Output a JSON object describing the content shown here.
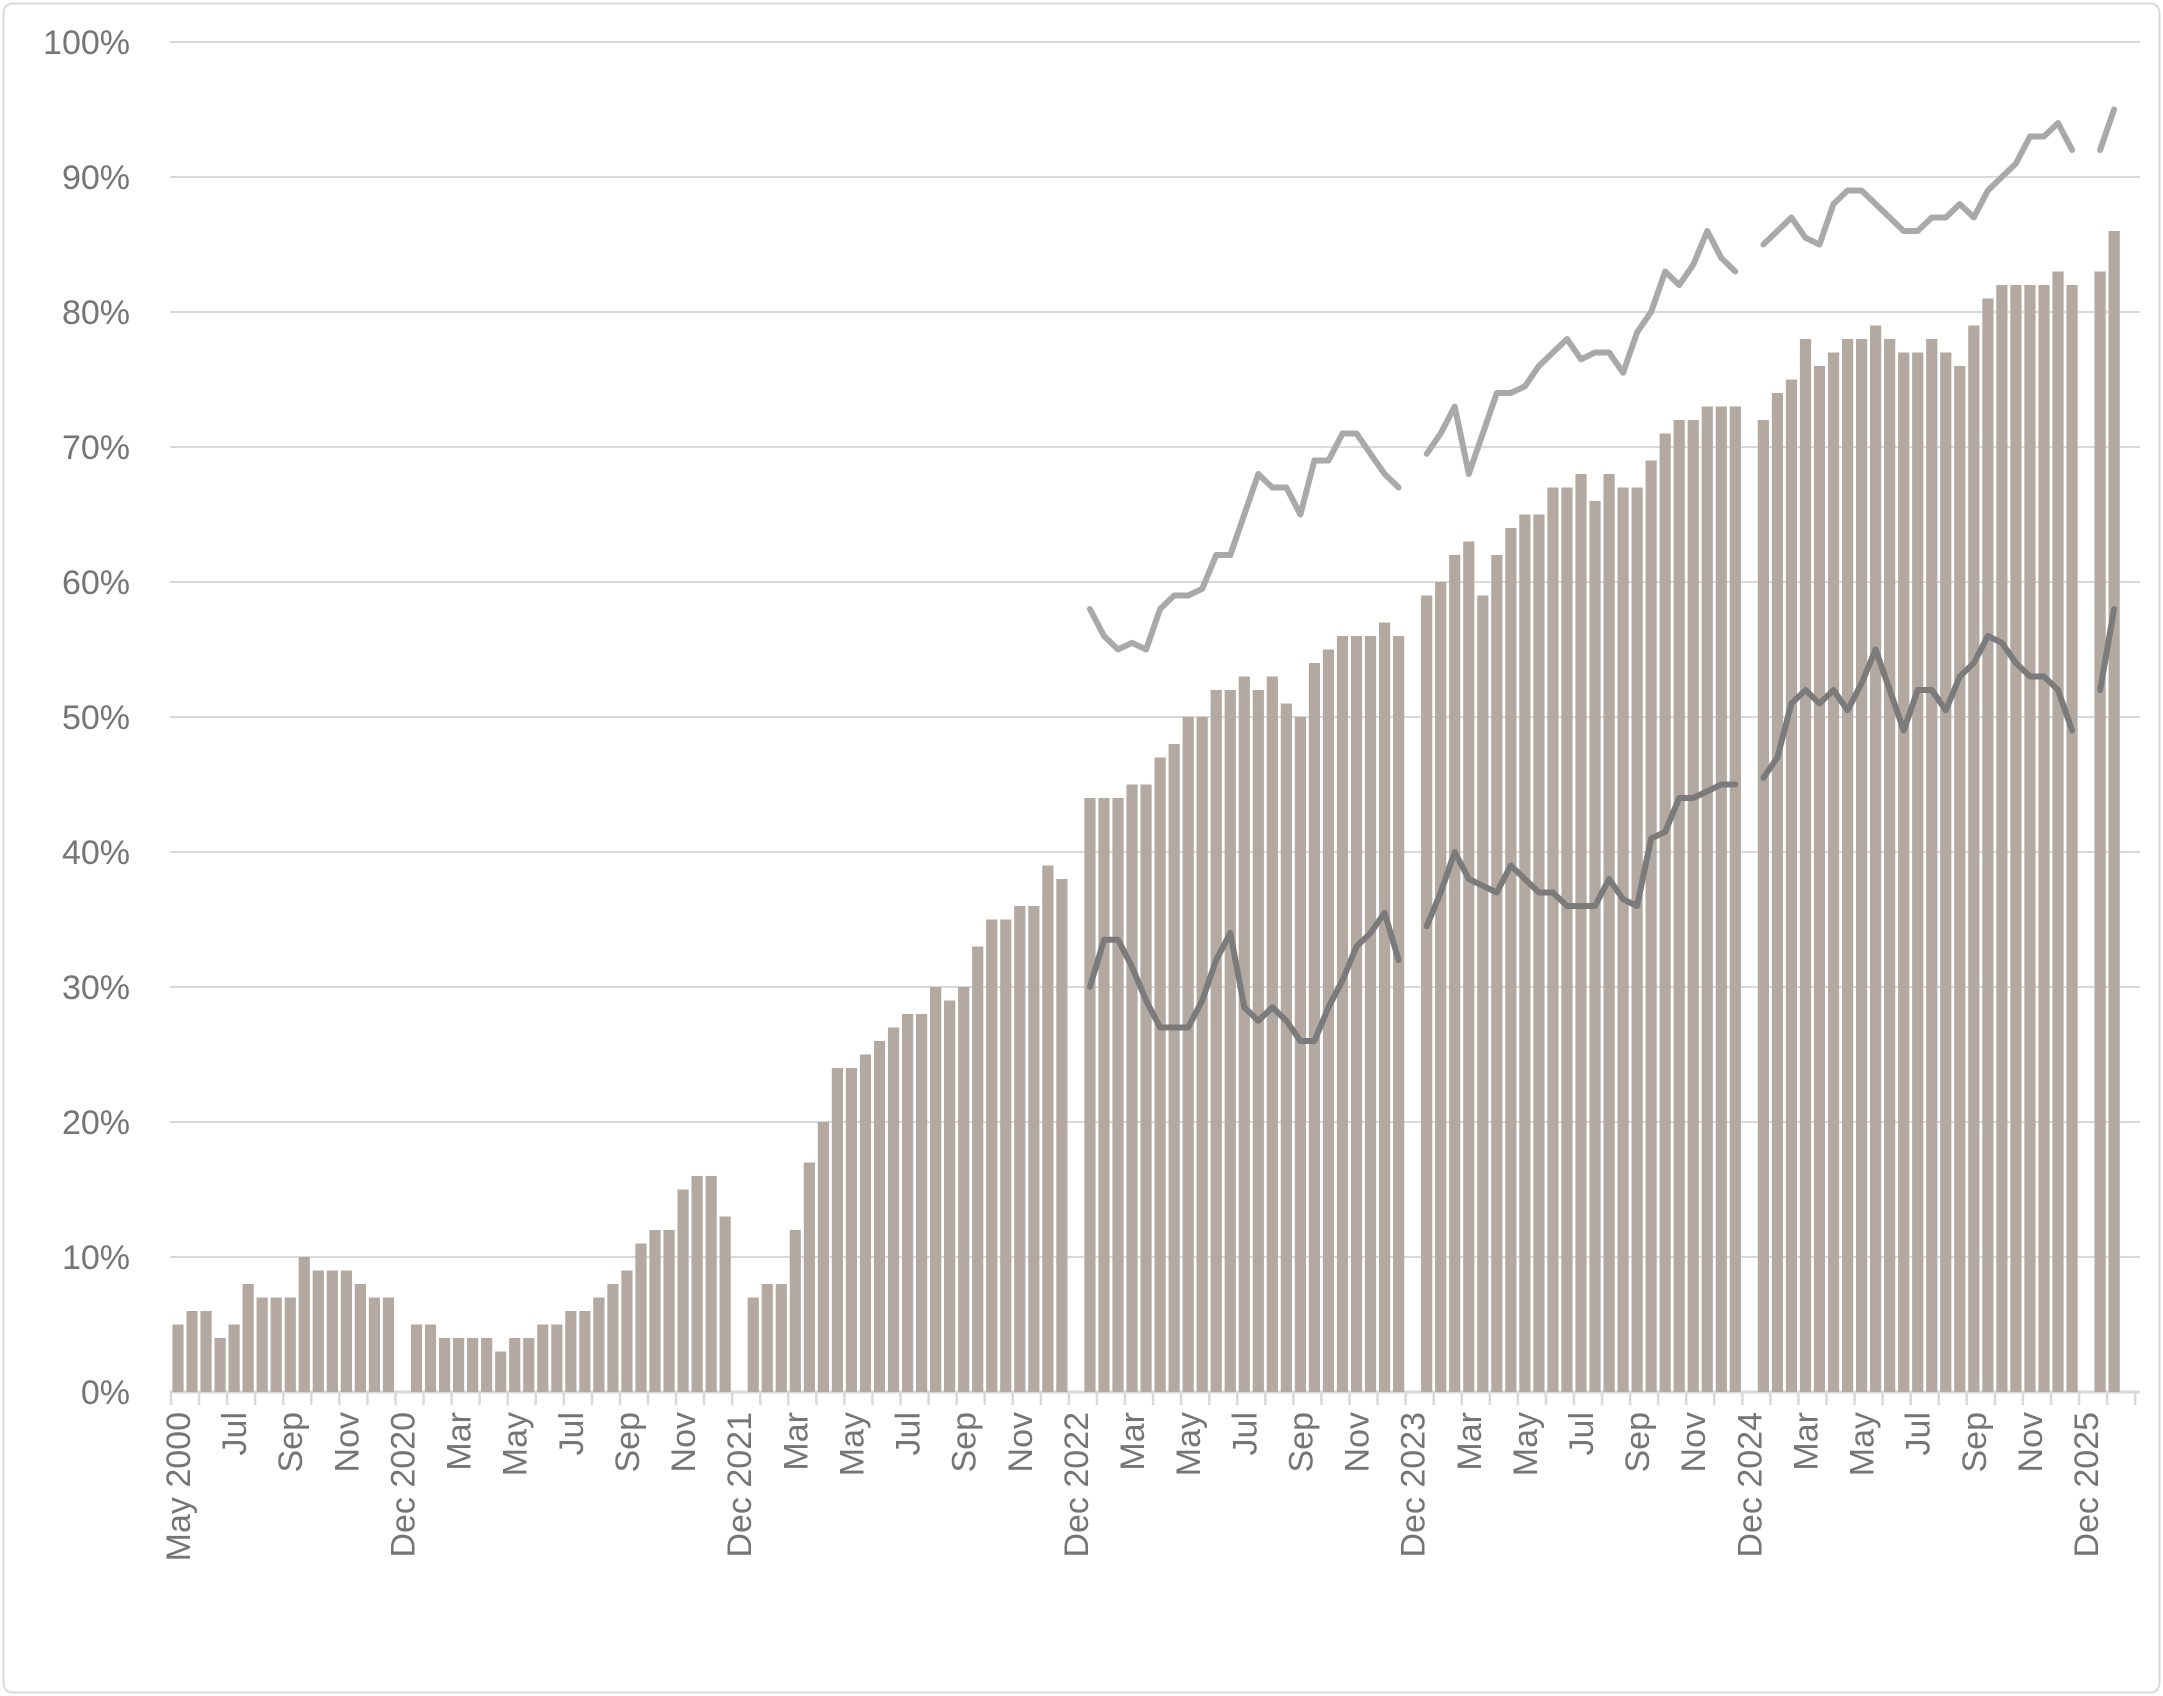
{
  "chart_data": {
    "type": "bar",
    "subtype": "bar-with-two-line-overlays",
    "title": "",
    "xlabel": "",
    "ylabel": "",
    "grid": "horizontal",
    "legend": "none",
    "y_axis": {
      "min": 0,
      "max": 100,
      "tick_step": 10,
      "tick_labels": [
        "0%",
        "10%",
        "20%",
        "30%",
        "40%",
        "50%",
        "60%",
        "70%",
        "80%",
        "90%",
        "100%"
      ]
    },
    "x_axis": {
      "label_every_n_slots": 4,
      "tick_every_n_slots": 2,
      "total_slots": 139,
      "labels": [
        "May 2000",
        "Jul",
        "Sep",
        "Nov",
        "Dec 2020",
        "Mar",
        "May",
        "Jul",
        "Sep",
        "Nov",
        "Dec 2021",
        "Mar",
        "May",
        "Jul",
        "Sep",
        "Nov",
        "Dec 2022",
        "Mar",
        "May",
        "Jul",
        "Sep",
        "Nov",
        "Dec 2023",
        "Mar",
        "May",
        "Jul",
        "Sep",
        "Nov",
        "Dec 2024",
        "Mar",
        "May",
        "Jul",
        "Sep",
        "Nov",
        "Dec 2025"
      ],
      "note_visible_in_pixels": "bar slots under each Dec label are empty (missing bars, lines break there)"
    },
    "series": [
      {
        "name": "bars",
        "type": "bar",
        "color": "#b3a9a0",
        "start_slot": 0,
        "values": [
          5,
          6,
          6,
          4,
          5,
          8,
          7,
          7,
          7,
          10,
          9,
          9,
          9,
          8,
          7,
          7,
          null,
          5,
          5,
          4,
          4,
          4,
          4,
          3,
          4,
          4,
          5,
          5,
          6,
          6,
          7,
          8,
          9,
          11,
          12,
          12,
          15,
          16,
          16,
          13,
          null,
          7,
          8,
          8,
          12,
          17,
          20,
          24,
          24,
          25,
          26,
          27,
          28,
          28,
          30,
          29,
          30,
          33,
          35,
          35,
          36,
          36,
          39,
          38,
          null,
          44,
          44,
          44,
          45,
          45,
          47,
          48,
          50,
          50,
          52,
          52,
          53,
          52,
          53,
          51,
          50,
          54,
          55,
          56,
          56,
          56,
          57,
          56,
          null,
          59,
          60,
          62,
          63,
          59,
          62,
          64,
          65,
          65,
          67,
          67,
          68,
          66,
          68,
          67,
          67,
          69,
          71,
          72,
          72,
          73,
          73,
          73,
          null,
          72,
          74,
          75,
          78,
          76,
          77,
          78,
          78,
          79,
          78,
          77,
          77,
          78,
          77,
          76,
          79,
          81,
          82,
          82,
          82,
          82,
          83,
          82,
          null,
          83,
          86
        ]
      },
      {
        "name": "upper_line",
        "type": "line",
        "color": "#a9a9a9",
        "start_slot": 65,
        "values": [
          58,
          56,
          55,
          55.5,
          55,
          58,
          59,
          59,
          59.5,
          62,
          62,
          65,
          68,
          67,
          67,
          65,
          69,
          69,
          71,
          71,
          69.5,
          68,
          67,
          null,
          69.5,
          71,
          73,
          68,
          71,
          74,
          74,
          74.5,
          76,
          77,
          78,
          76.5,
          77,
          77,
          75.5,
          78.5,
          80,
          83,
          82,
          83.5,
          86,
          84,
          83,
          null,
          85,
          86,
          87,
          85.5,
          85,
          88,
          89,
          89,
          88,
          87,
          86,
          86,
          87,
          87,
          88,
          87,
          89,
          90,
          91,
          93,
          93,
          94,
          92,
          null,
          92,
          95
        ]
      },
      {
        "name": "lower_line",
        "type": "line",
        "color": "#7b7b7b",
        "start_slot": 65,
        "values": [
          30,
          33.5,
          33.5,
          31.5,
          29,
          27,
          27,
          27,
          29,
          32,
          34,
          28.5,
          27.5,
          28.5,
          27.5,
          26,
          26,
          28.5,
          30.5,
          33,
          34,
          35.5,
          32,
          null,
          34.5,
          37,
          40,
          38,
          37.5,
          37,
          39,
          38,
          37,
          37,
          36,
          36,
          36,
          38,
          36.5,
          36,
          41,
          41.5,
          44,
          44,
          44.5,
          45,
          45,
          null,
          45.5,
          47,
          51,
          52,
          51,
          52,
          50.5,
          52.5,
          55,
          52,
          49,
          52,
          52,
          50.5,
          53,
          54,
          56,
          55.5,
          54,
          53,
          53,
          52,
          49,
          null,
          52,
          58
        ]
      }
    ],
    "colors": {
      "background": "#ffffff",
      "gridline": "#d9d9d9",
      "axis_line": "#d9d9d9",
      "tick_mark": "#d9d9d9",
      "axis_text": "#757575",
      "border": "#d9d9d9"
    }
  }
}
